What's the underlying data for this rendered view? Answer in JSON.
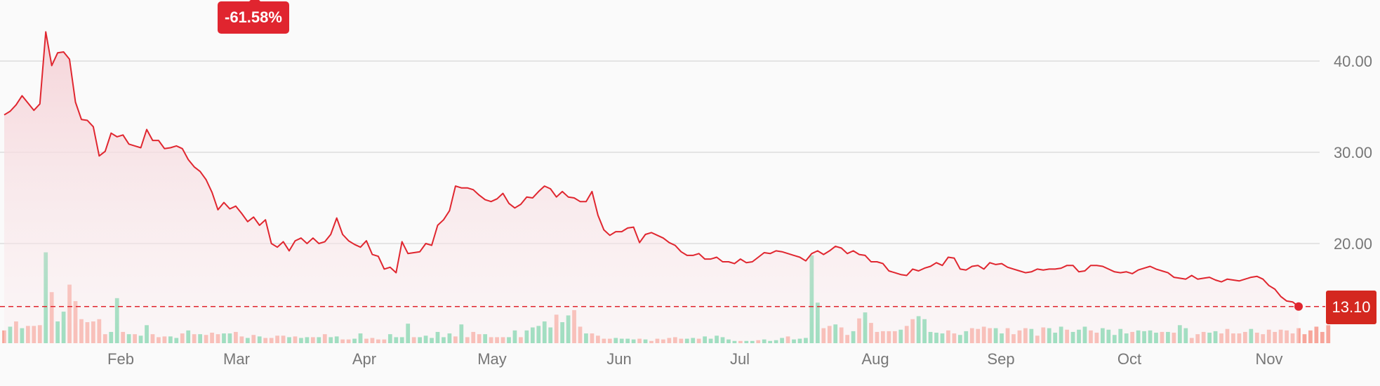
{
  "badge": {
    "change_text": "-61.58%"
  },
  "last_price_text": "13.10",
  "colors": {
    "line": "#e0262f",
    "area": "#f6d8dc",
    "up_volume": "#6fd6a7",
    "down_volume": "#f7a69b",
    "grid": "#dcdcdc",
    "badge": "#e0252f"
  },
  "chart_data": {
    "type": "line",
    "title": "",
    "xlabel": "",
    "ylabel": "",
    "x_ticks": [
      "Feb",
      "Mar",
      "Apr",
      "May",
      "Jun",
      "Jul",
      "Aug",
      "Sep",
      "Oct",
      "Nov"
    ],
    "y_ticks": [
      "40.00",
      "30.00",
      "20.00"
    ],
    "y_tick_values": [
      40,
      30,
      20
    ],
    "ylim": [
      11.0,
      46.5
    ],
    "grid": true,
    "last_value": 13.1,
    "change_percent": -61.58,
    "series": [
      {
        "values": [
          34.1,
          34.5,
          35.2,
          36.2,
          35.4,
          34.6,
          35.3,
          43.2,
          39.5,
          40.9,
          41.0,
          40.2,
          35.5,
          33.6,
          33.5,
          32.8,
          29.6,
          30.1,
          32.1,
          31.7,
          31.9,
          30.9,
          30.7,
          30.5,
          32.5,
          31.3,
          31.3,
          30.4,
          30.5,
          30.7,
          30.4,
          29.2,
          28.4,
          27.9,
          27.0,
          25.6,
          23.7,
          24.5,
          23.8,
          24.1,
          23.3,
          22.4,
          22.9,
          22.0,
          22.6,
          20.0,
          19.6,
          20.2,
          19.2,
          20.3,
          20.6,
          20.0,
          20.6,
          20.0,
          20.2,
          21.0,
          22.8,
          21.0,
          20.3,
          19.9,
          19.6,
          20.3,
          18.8,
          18.6,
          17.2,
          17.4,
          16.8,
          20.2,
          18.9,
          19.0,
          19.1,
          20.0,
          19.8,
          22.0,
          22.6,
          23.6,
          26.3,
          26.1,
          26.1,
          25.9,
          25.3,
          24.8,
          24.6,
          24.9,
          25.5,
          24.4,
          23.9,
          24.3,
          25.1,
          25.0,
          25.7,
          26.3,
          26.0,
          25.1,
          25.7,
          25.1,
          25.0,
          24.6,
          24.6,
          25.7,
          23.1,
          21.5,
          20.9,
          21.3,
          21.3,
          21.7,
          21.8,
          20.1,
          21.0,
          21.2,
          20.9,
          20.6,
          20.1,
          19.8,
          19.1,
          18.7,
          18.7,
          18.9,
          18.3,
          18.3,
          18.5,
          18.0,
          18.0,
          17.8,
          18.3,
          17.9,
          18.0,
          18.5,
          19.0,
          18.9,
          19.2,
          19.1,
          18.9,
          18.7,
          18.5,
          18.1,
          18.9,
          19.2,
          18.8,
          19.2,
          19.7,
          19.5,
          18.9,
          19.2,
          18.8,
          18.7,
          18.0,
          18.0,
          17.8,
          17.0,
          16.8,
          16.6,
          16.5,
          17.2,
          17.0,
          17.3,
          17.5,
          17.9,
          17.6,
          18.5,
          18.4,
          17.2,
          17.1,
          17.5,
          17.6,
          17.2,
          17.9,
          17.7,
          17.8,
          17.4,
          17.2,
          17.0,
          16.8,
          16.9,
          17.2,
          17.1,
          17.2,
          17.2,
          17.3,
          17.6,
          17.6,
          16.9,
          17.0,
          17.6,
          17.6,
          17.5,
          17.2,
          16.9,
          16.8,
          16.9,
          16.7,
          17.1,
          17.3,
          17.5,
          17.2,
          17.0,
          16.8,
          16.3,
          16.2,
          16.1,
          16.5,
          16.1,
          16.2,
          16.3,
          16.0,
          15.8,
          16.1,
          16.0,
          15.9,
          16.1,
          16.3,
          16.4,
          16.1,
          15.4,
          15.0,
          14.2,
          13.7,
          13.6,
          13.1
        ]
      }
    ],
    "volume": {
      "up": [
        false,
        true,
        false,
        true,
        false,
        false,
        false,
        true,
        false,
        true,
        true,
        false,
        false,
        false,
        false,
        false,
        false,
        false,
        true,
        true,
        false,
        true,
        false,
        true,
        true,
        false,
        false,
        false,
        true,
        true,
        false,
        true,
        false,
        true,
        false,
        false,
        false,
        true,
        true,
        false,
        false,
        true,
        false,
        true,
        false,
        false,
        false,
        false,
        true,
        false,
        true,
        true,
        false,
        true,
        false,
        true,
        true,
        false,
        false,
        true,
        true,
        false,
        false,
        false,
        false,
        true,
        true,
        true,
        true,
        false,
        true,
        true,
        true,
        true,
        true,
        true,
        false,
        true,
        false,
        false,
        false,
        true,
        false,
        false,
        false,
        true,
        true,
        false,
        true,
        true,
        true,
        true,
        true,
        false,
        true,
        true,
        false,
        false,
        true,
        false,
        false,
        false,
        false,
        true,
        true,
        true,
        true,
        false,
        true,
        false,
        false,
        false,
        false,
        false,
        false,
        true,
        true,
        false,
        true,
        true,
        true,
        true,
        true,
        true,
        false,
        true,
        true,
        false,
        true,
        true,
        true,
        true,
        false,
        true,
        true,
        true,
        true,
        true,
        false,
        false,
        true,
        false,
        false,
        true,
        false,
        true,
        false,
        false,
        false,
        false,
        false,
        true,
        false,
        false,
        true,
        true,
        true,
        true,
        true,
        false,
        false,
        true,
        true,
        false,
        false,
        false,
        false,
        true,
        true,
        false,
        false,
        false,
        false,
        true,
        false,
        false,
        true,
        true,
        true,
        false,
        true,
        true,
        true,
        false,
        false,
        true,
        true,
        true,
        true,
        true,
        false,
        true,
        true,
        true,
        true,
        false,
        true,
        false,
        true,
        true,
        false,
        false,
        false,
        true,
        true,
        false,
        false,
        false,
        false,
        false,
        true,
        false,
        false,
        false,
        false,
        false,
        false,
        false
      ],
      "values": [
        1.7,
        2.2,
        2.9,
        2.0,
        2.3,
        2.3,
        2.4,
        12.1,
        6.8,
        2.9,
        4.2,
        7.8,
        5.6,
        3.2,
        2.8,
        2.9,
        3.2,
        1.2,
        1.5,
        6.0,
        1.5,
        1.2,
        1.2,
        1.0,
        2.4,
        1.2,
        0.8,
        0.9,
        0.9,
        0.7,
        1.3,
        1.7,
        1.2,
        1.2,
        1.1,
        1.4,
        1.2,
        1.3,
        1.3,
        1.5,
        0.9,
        0.7,
        1.1,
        0.9,
        0.7,
        0.7,
        1.0,
        1.0,
        0.8,
        0.9,
        0.7,
        0.8,
        0.8,
        0.8,
        1.2,
        0.8,
        0.9,
        0.5,
        0.5,
        0.6,
        1.3,
        0.6,
        0.7,
        0.5,
        0.5,
        1.2,
        0.8,
        0.8,
        2.6,
        0.8,
        0.8,
        1.0,
        0.7,
        1.5,
        0.8,
        1.3,
        0.9,
        2.5,
        0.8,
        1.5,
        1.2,
        1.2,
        0.8,
        0.8,
        0.8,
        0.8,
        1.7,
        0.8,
        1.7,
        2.1,
        2.3,
        2.9,
        2.1,
        3.8,
        2.8,
        3.7,
        4.4,
        2.2,
        1.3,
        1.3,
        1.0,
        0.6,
        0.6,
        0.7,
        0.6,
        0.6,
        0.5,
        0.6,
        0.5,
        0.3,
        0.6,
        0.5,
        0.7,
        0.8,
        0.6,
        0.6,
        0.7,
        0.6,
        0.9,
        0.6,
        1.0,
        0.8,
        0.5,
        0.3,
        0.3,
        0.3,
        0.3,
        0.4,
        0.5,
        0.3,
        0.4,
        0.7,
        0.9,
        0.5,
        0.6,
        0.7,
        11.7,
        5.4,
        2.0,
        2.3,
        2.5,
        2.1,
        1.1,
        1.6,
        3.3,
        4.1,
        2.7,
        1.5,
        1.6,
        1.6,
        1.6,
        1.8,
        2.3,
        3.2,
        3.6,
        3.2,
        1.5,
        1.4,
        1.3,
        1.7,
        1.3,
        1.1,
        1.6,
        2.0,
        1.9,
        2.2,
        2.0,
        2.0,
        1.3,
        2.0,
        1.2,
        1.7,
        2.0,
        1.9,
        1.0,
        2.1,
        2.0,
        1.4,
        2.2,
        1.8,
        1.5,
        1.8,
        2.2,
        1.7,
        1.4,
        2.0,
        1.8,
        1.1,
        1.9,
        1.3,
        1.5,
        1.7,
        1.6,
        1.7,
        1.4,
        1.5,
        1.5,
        1.4,
        2.4,
        2.0,
        0.7,
        1.2,
        1.5,
        1.4,
        1.6,
        1.3,
        1.9,
        1.3,
        1.3,
        1.5,
        1.9,
        1.4,
        1.2,
        1.8,
        1.5,
        1.8,
        1.7,
        1.3,
        2.0,
        1.2,
        1.7,
        2.2,
        1.5,
        2.4
      ]
    }
  }
}
